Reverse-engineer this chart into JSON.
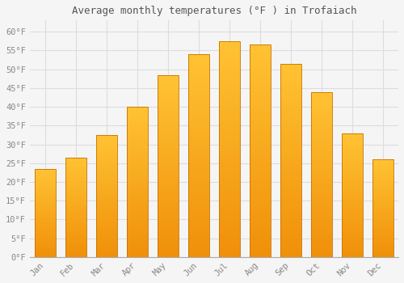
{
  "title": "Average monthly temperatures (°F ) in Trofaiach",
  "months": [
    "Jan",
    "Feb",
    "Mar",
    "Apr",
    "May",
    "Jun",
    "Jul",
    "Aug",
    "Sep",
    "Oct",
    "Nov",
    "Dec"
  ],
  "values": [
    23.5,
    26.5,
    32.5,
    40.0,
    48.5,
    54.0,
    57.5,
    56.5,
    51.5,
    44.0,
    33.0,
    26.0
  ],
  "bar_color_top": "#FFC333",
  "bar_color_bottom": "#F0900A",
  "bar_edge_color": "#C87000",
  "ylim": [
    0,
    63
  ],
  "yticks": [
    0,
    5,
    10,
    15,
    20,
    25,
    30,
    35,
    40,
    45,
    50,
    55,
    60
  ],
  "background_color": "#F5F5F5",
  "plot_bg_color": "#F5F5F5",
  "grid_color": "#DDDDDD",
  "title_fontsize": 9,
  "tick_fontsize": 7.5,
  "font_family": "monospace",
  "title_color": "#555555",
  "tick_color": "#888888"
}
